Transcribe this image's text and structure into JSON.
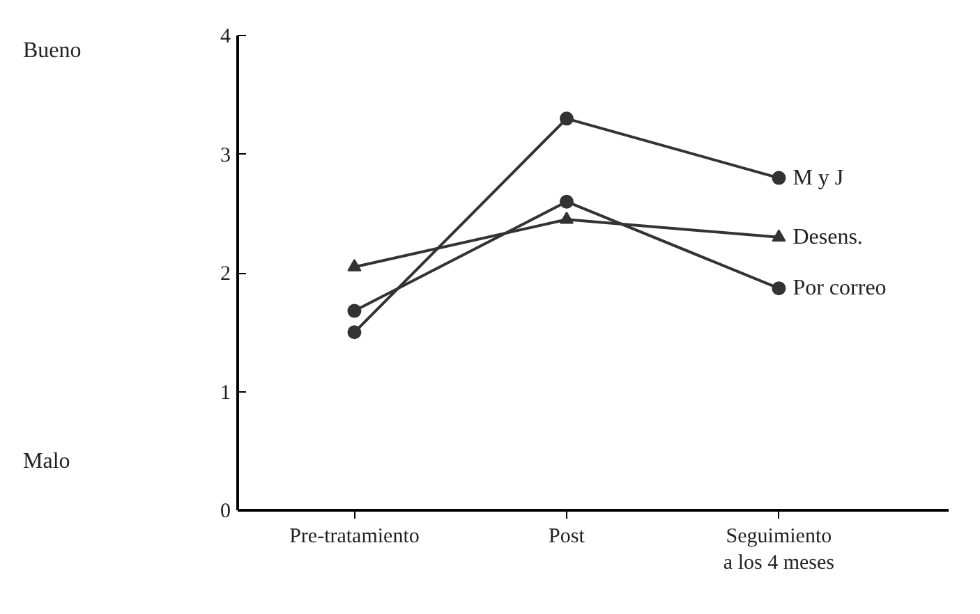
{
  "chart_data": {
    "type": "line",
    "categories": [
      "Pre-tratamiento",
      "Post",
      "Seguimiento\na los 4 meses"
    ],
    "series": [
      {
        "name": "M y J",
        "color": "#333333",
        "marker": "circle",
        "values": [
          1.5,
          3.3,
          2.8
        ]
      },
      {
        "name": "Desens.",
        "color": "#333333",
        "marker": "triangle",
        "values": [
          2.05,
          2.45,
          2.3
        ]
      },
      {
        "name": "Por correo",
        "color": "#333333",
        "marker": "circle",
        "values": [
          1.68,
          2.6,
          1.87
        ]
      }
    ],
    "ylim": [
      0,
      4
    ],
    "yticks": [
      0,
      1,
      2,
      3,
      4
    ],
    "grid": false,
    "annotations": [
      "Bueno",
      "Malo"
    ]
  }
}
